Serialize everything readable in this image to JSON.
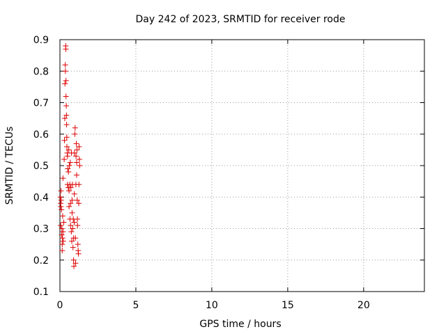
{
  "chart_data": {
    "type": "scatter",
    "title": "Day 242 of 2023, SRMTID for receiver rode",
    "xlabel": "GPS time / hours",
    "ylabel": "SRMTID / TECUs",
    "xlim": [
      0,
      24
    ],
    "ylim": [
      0.1,
      0.9
    ],
    "xticks": [
      0,
      5,
      10,
      15,
      20
    ],
    "xtick_labels": [
      "0",
      "5",
      "10",
      "15",
      "20"
    ],
    "yticks": [
      0.1,
      0.2,
      0.3,
      0.4,
      0.5,
      0.6,
      0.7,
      0.8,
      0.9
    ],
    "ytick_labels": [
      "0.1",
      "0.2",
      "0.3",
      "0.4",
      "0.5",
      "0.6",
      "0.7",
      "0.8",
      "0.9"
    ],
    "grid": true,
    "legend": "none",
    "marker": "+",
    "color": "#dd0000",
    "points": [
      [
        0.03,
        0.4
      ],
      [
        0.05,
        0.38
      ],
      [
        0.05,
        0.31
      ],
      [
        0.06,
        0.37
      ],
      [
        0.07,
        0.42
      ],
      [
        0.08,
        0.39
      ],
      [
        0.1,
        0.36
      ],
      [
        0.12,
        0.28
      ],
      [
        0.13,
        0.3
      ],
      [
        0.15,
        0.23
      ],
      [
        0.15,
        0.25
      ],
      [
        0.17,
        0.27
      ],
      [
        0.18,
        0.34
      ],
      [
        0.2,
        0.29
      ],
      [
        0.2,
        0.46
      ],
      [
        0.22,
        0.26
      ],
      [
        0.25,
        0.32
      ],
      [
        0.28,
        0.52
      ],
      [
        0.3,
        0.58
      ],
      [
        0.32,
        0.65
      ],
      [
        0.33,
        0.76
      ],
      [
        0.35,
        0.82
      ],
      [
        0.36,
        0.8
      ],
      [
        0.38,
        0.88
      ],
      [
        0.39,
        0.87
      ],
      [
        0.4,
        0.77
      ],
      [
        0.4,
        0.72
      ],
      [
        0.42,
        0.69
      ],
      [
        0.43,
        0.66
      ],
      [
        0.44,
        0.63
      ],
      [
        0.45,
        0.59
      ],
      [
        0.46,
        0.56
      ],
      [
        0.48,
        0.54
      ],
      [
        0.5,
        0.53
      ],
      [
        0.5,
        0.44
      ],
      [
        0.52,
        0.49
      ],
      [
        0.55,
        0.43
      ],
      [
        0.56,
        0.48
      ],
      [
        0.58,
        0.55
      ],
      [
        0.6,
        0.42
      ],
      [
        0.6,
        0.37
      ],
      [
        0.62,
        0.5
      ],
      [
        0.65,
        0.44
      ],
      [
        0.66,
        0.33
      ],
      [
        0.68,
        0.51
      ],
      [
        0.7,
        0.38
      ],
      [
        0.7,
        0.31
      ],
      [
        0.72,
        0.43
      ],
      [
        0.75,
        0.29
      ],
      [
        0.76,
        0.54
      ],
      [
        0.78,
        0.26
      ],
      [
        0.8,
        0.39
      ],
      [
        0.8,
        0.35
      ],
      [
        0.82,
        0.44
      ],
      [
        0.84,
        0.3
      ],
      [
        0.86,
        0.24
      ],
      [
        0.88,
        0.33
      ],
      [
        0.9,
        0.27
      ],
      [
        0.9,
        0.2
      ],
      [
        0.92,
        0.18
      ],
      [
        0.94,
        0.32
      ],
      [
        0.95,
        0.41
      ],
      [
        0.96,
        0.54
      ],
      [
        0.98,
        0.6
      ],
      [
        1.0,
        0.62
      ],
      [
        1.02,
        0.27
      ],
      [
        1.03,
        0.19
      ],
      [
        1.05,
        0.44
      ],
      [
        1.06,
        0.53
      ],
      [
        1.08,
        0.57
      ],
      [
        1.1,
        0.47
      ],
      [
        1.1,
        0.51
      ],
      [
        1.12,
        0.55
      ],
      [
        1.14,
        0.39
      ],
      [
        1.15,
        0.33
      ],
      [
        1.16,
        0.31
      ],
      [
        1.18,
        0.25
      ],
      [
        1.2,
        0.23
      ],
      [
        1.22,
        0.22
      ],
      [
        1.24,
        0.38
      ],
      [
        1.25,
        0.44
      ],
      [
        1.26,
        0.56
      ],
      [
        1.28,
        0.52
      ],
      [
        1.3,
        0.5
      ]
    ]
  }
}
